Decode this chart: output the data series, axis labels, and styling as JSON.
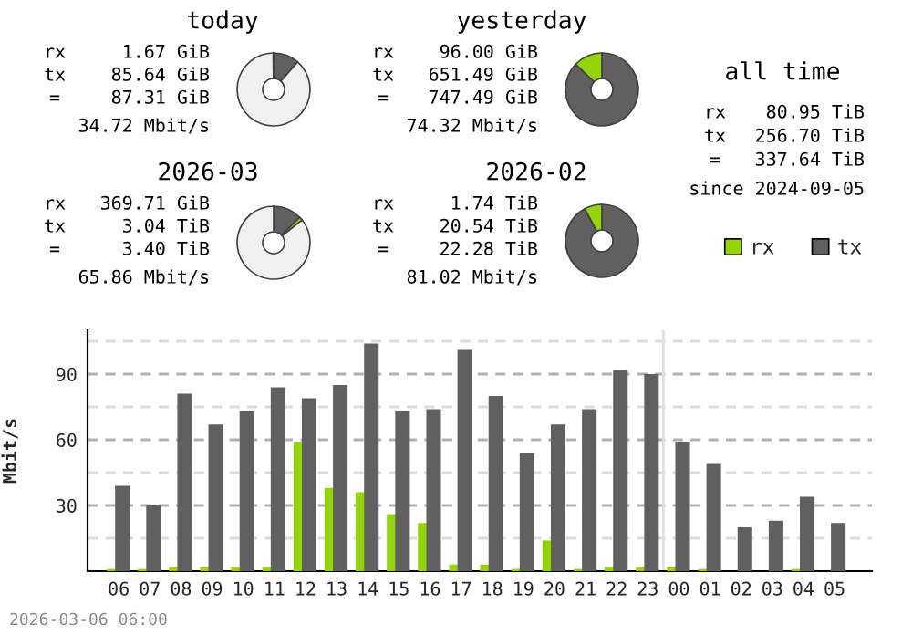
{
  "chart_data": [
    {
      "type": "donut",
      "title": "today",
      "categories": [
        null,
        null,
        null
      ],
      "values": [
        11.5,
        null,
        88.3
      ],
      "colors": [
        "#606060",
        "#94d40b",
        "#f0f0f0"
      ],
      "annotations": [
        "rx",
        "1.67 GiB",
        "tx",
        "85.64 GiB",
        "=",
        "87.31 GiB",
        "34.72 Mbit/s"
      ]
    },
    {
      "type": "donut",
      "title": "yesterday",
      "categories": [
        null,
        null
      ],
      "values": [
        87.2,
        12.8
      ],
      "colors": [
        "#606060",
        "#94d40b"
      ],
      "annotations": [
        "rx",
        "96.00 GiB",
        "tx",
        "651.49 GiB",
        "=",
        "747.49 GiB",
        "74.32 Mbit/s"
      ]
    },
    {
      "type": "donut",
      "title": "2026-03",
      "categories": [
        null,
        null,
        null
      ],
      "values": [
        12.8,
        1.5,
        85.7
      ],
      "colors": [
        "#606060",
        "#94d40b",
        "#f0f0f0"
      ],
      "annotations": [
        "rx",
        "369.71 GiB",
        "tx",
        "3.04 TiB",
        "=",
        "3.40 TiB",
        "65.86 Mbit/s"
      ]
    },
    {
      "type": "donut",
      "title": "2026-02",
      "categories": [
        null,
        null
      ],
      "values": [
        92.2,
        7.8
      ],
      "colors": [
        "#606060",
        "#94d40b"
      ],
      "annotations": [
        "rx",
        "1.74 TiB",
        "tx",
        "20.54 TiB",
        "=",
        "22.28 TiB",
        "81.02 Mbit/s"
      ]
    },
    {
      "type": "other",
      "title": "all time",
      "annotations": [
        "rx",
        "80.95 TiB",
        "tx",
        "256.70 TiB",
        "=",
        "337.64 TiB",
        "since 2024-09-05"
      ]
    },
    {
      "type": "bar",
      "ylabel": "Mbit/s",
      "categories": [
        "06",
        "07",
        "08",
        "09",
        "10",
        "11",
        "12",
        "13",
        "14",
        "15",
        "16",
        "17",
        "18",
        "19",
        "20",
        "21",
        "22",
        "23",
        "00",
        "01",
        "02",
        "03",
        "04",
        "05"
      ],
      "series": [
        {
          "name": "rx",
          "color": "#94d40b",
          "values": [
            1,
            1,
            2,
            2,
            2,
            2,
            59,
            38,
            36,
            26,
            22,
            3,
            3,
            1,
            14,
            1,
            2,
            2,
            2,
            1,
            0,
            0,
            1,
            0
          ]
        },
        {
          "name": "tx",
          "color": "#606060",
          "values": [
            39,
            30,
            81,
            67,
            73,
            84,
            79,
            85,
            104,
            73,
            74,
            101,
            80,
            54,
            67,
            74,
            92,
            90,
            59,
            49,
            20,
            23,
            34,
            22
          ]
        }
      ],
      "ylim": [
        0,
        110
      ],
      "yticks": [
        {
          "value": 15,
          "label": null
        },
        30,
        {
          "value": 45,
          "label": null
        },
        60,
        {
          "value": 75,
          "label": null
        },
        90,
        {
          "value": 105,
          "label": null
        }
      ],
      "grid": "y",
      "legend": "top right",
      "ref_lines": [
        {
          "axis": "x",
          "value": "00",
          "color": "#e0e0e0"
        }
      ],
      "annotations": [
        "2026-03-06 06:00"
      ]
    }
  ]
}
